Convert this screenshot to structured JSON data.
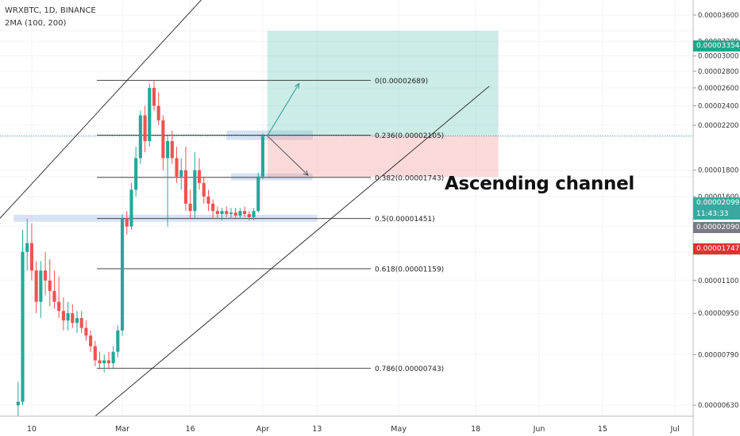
{
  "header": {
    "symbol_line": "WRXBTC, 1D, BINANCE",
    "indicator_line": "2MA (100, 200)"
  },
  "annotation": {
    "text": "Ascending channel"
  },
  "price_tags": [
    {
      "value": "0.00003354",
      "color": "#22a68a"
    },
    {
      "value": "0.00002099",
      "color": "#3aa8a0"
    },
    {
      "value": "11:43:33",
      "color": "#3aa8a0"
    },
    {
      "value": "0.00002090",
      "color": "#787b86"
    },
    {
      "value": "0.00001747",
      "color": "#e0322f"
    }
  ],
  "chart_data": {
    "type": "candlestick",
    "y_scale": "log",
    "ylim": [
      6e-06,
      3.85e-05
    ],
    "xlim": [
      "2020-02-03",
      "2020-07-05"
    ],
    "y_ticks": [
      "0.00003600",
      "0.00003354",
      "0.00003200",
      "0.00003000",
      "0.00002800",
      "0.00002600",
      "0.00002400",
      "0.00002200",
      "0.00002099",
      "0.00002090",
      "0.00001800",
      "0.00001747",
      "0.00001600",
      "0.00001400",
      "0.00001250",
      "0.00001100",
      "0.00000950",
      "0.00000790",
      "0.00000630"
    ],
    "x_ticks": [
      {
        "label": "10",
        "date": "2020-02-10"
      },
      {
        "label": "Mar",
        "date": "2020-03-01"
      },
      {
        "label": "16",
        "date": "2020-03-16"
      },
      {
        "label": "Apr",
        "date": "2020-04-01"
      },
      {
        "label": "13",
        "date": "2020-04-13"
      },
      {
        "label": "May",
        "date": "2020-05-01"
      },
      {
        "label": "18",
        "date": "2020-05-18"
      },
      {
        "label": "Jun",
        "date": "2020-06-01"
      },
      {
        "label": "15",
        "date": "2020-06-15"
      },
      {
        "label": "Jul",
        "date": "2020-07-01"
      }
    ],
    "candles": [
      {
        "date": "2020-02-07",
        "o": 6.3e-06,
        "h": 7e-06,
        "l": 6e-06,
        "c": 6.4e-06
      },
      {
        "date": "2020-02-08",
        "o": 6.4e-06,
        "h": 1.38e-05,
        "l": 6.3e-06,
        "c": 1.25e-05
      },
      {
        "date": "2020-02-09",
        "o": 1.25e-05,
        "h": 1.45e-05,
        "l": 1.15e-05,
        "c": 1.3e-05
      },
      {
        "date": "2020-02-10",
        "o": 1.3e-05,
        "h": 1.42e-05,
        "l": 1.1e-05,
        "c": 1.15e-05
      },
      {
        "date": "2020-02-11",
        "o": 1.15e-05,
        "h": 1.2e-05,
        "l": 9.5e-06,
        "c": 1e-05
      },
      {
        "date": "2020-02-12",
        "o": 1e-05,
        "h": 1.2e-05,
        "l": 9.3e-06,
        "c": 1.15e-05
      },
      {
        "date": "2020-02-13",
        "o": 1.15e-05,
        "h": 1.25e-05,
        "l": 1.03e-05,
        "c": 1.1e-05
      },
      {
        "date": "2020-02-14",
        "o": 1.1e-05,
        "h": 1.21e-05,
        "l": 9.8e-06,
        "c": 1.05e-05
      },
      {
        "date": "2020-02-15",
        "o": 1.05e-05,
        "h": 1.15e-05,
        "l": 9.7e-06,
        "c": 1e-05
      },
      {
        "date": "2020-02-16",
        "o": 1e-05,
        "h": 1.12e-05,
        "l": 9.3e-06,
        "c": 9.6e-06
      },
      {
        "date": "2020-02-17",
        "o": 9.6e-06,
        "h": 1.02e-05,
        "l": 8.8e-06,
        "c": 9.2e-06
      },
      {
        "date": "2020-02-18",
        "o": 9.2e-06,
        "h": 1e-05,
        "l": 8.8e-06,
        "c": 9.5e-06
      },
      {
        "date": "2020-02-19",
        "o": 9.5e-06,
        "h": 9.9e-06,
        "l": 8.9e-06,
        "c": 9.1e-06
      },
      {
        "date": "2020-02-20",
        "o": 9.1e-06,
        "h": 9.6e-06,
        "l": 8.7e-06,
        "c": 9.3e-06
      },
      {
        "date": "2020-02-21",
        "o": 9.3e-06,
        "h": 9.6e-06,
        "l": 8.7e-06,
        "c": 8.9e-06
      },
      {
        "date": "2020-02-22",
        "o": 8.9e-06,
        "h": 9.2e-06,
        "l": 8.4e-06,
        "c": 8.6e-06
      },
      {
        "date": "2020-02-23",
        "o": 8.6e-06,
        "h": 8.8e-06,
        "l": 8e-06,
        "c": 8.2e-06
      },
      {
        "date": "2020-02-24",
        "o": 8.2e-06,
        "h": 8.4e-06,
        "l": 7.5e-06,
        "c": 7.7e-06
      },
      {
        "date": "2020-02-25",
        "o": 7.7e-06,
        "h": 8e-06,
        "l": 7.4e-06,
        "c": 7.6e-06
      },
      {
        "date": "2020-02-26",
        "o": 7.6e-06,
        "h": 7.9e-06,
        "l": 7.3e-06,
        "c": 7.7e-06
      },
      {
        "date": "2020-02-27",
        "o": 7.7e-06,
        "h": 8e-06,
        "l": 7.4e-06,
        "c": 7.6e-06
      },
      {
        "date": "2020-02-28",
        "o": 7.6e-06,
        "h": 8.2e-06,
        "l": 7.4e-06,
        "c": 8e-06
      },
      {
        "date": "2020-02-29",
        "o": 8e-06,
        "h": 9e-06,
        "l": 7.8e-06,
        "c": 8.8e-06
      },
      {
        "date": "2020-03-01",
        "o": 8.8e-06,
        "h": 1.48e-05,
        "l": 8.6e-06,
        "c": 1.45e-05
      },
      {
        "date": "2020-03-02",
        "o": 1.45e-05,
        "h": 1.5e-05,
        "l": 1.35e-05,
        "c": 1.4e-05
      },
      {
        "date": "2020-03-03",
        "o": 1.4e-05,
        "h": 1.7e-05,
        "l": 1.38e-05,
        "c": 1.65e-05
      },
      {
        "date": "2020-03-04",
        "o": 1.65e-05,
        "h": 2e-05,
        "l": 1.6e-05,
        "c": 1.9e-05
      },
      {
        "date": "2020-03-05",
        "o": 1.9e-05,
        "h": 2.35e-05,
        "l": 1.85e-05,
        "c": 2.3e-05
      },
      {
        "date": "2020-03-06",
        "o": 2.3e-05,
        "h": 2.4e-05,
        "l": 1.95e-05,
        "c": 2.05e-05
      },
      {
        "date": "2020-03-07",
        "o": 2.05e-05,
        "h": 2.65e-05,
        "l": 2e-05,
        "c": 2.6e-05
      },
      {
        "date": "2020-03-08",
        "o": 2.6e-05,
        "h": 2.69e-05,
        "l": 2.35e-05,
        "c": 2.4e-05
      },
      {
        "date": "2020-03-09",
        "o": 2.4e-05,
        "h": 2.55e-05,
        "l": 2.2e-05,
        "c": 2.25e-05
      },
      {
        "date": "2020-03-10",
        "o": 2.25e-05,
        "h": 2.3e-05,
        "l": 1.8e-05,
        "c": 1.9e-05
      },
      {
        "date": "2020-03-11",
        "o": 1.9e-05,
        "h": 2.1e-05,
        "l": 1.4e-05,
        "c": 2.05e-05
      },
      {
        "date": "2020-03-12",
        "o": 2.05e-05,
        "h": 2.15e-05,
        "l": 1.85e-05,
        "c": 1.9e-05
      },
      {
        "date": "2020-03-13",
        "o": 1.9e-05,
        "h": 2e-05,
        "l": 1.7e-05,
        "c": 1.75e-05
      },
      {
        "date": "2020-03-14",
        "o": 1.75e-05,
        "h": 1.9e-05,
        "l": 1.65e-05,
        "c": 1.8e-05
      },
      {
        "date": "2020-03-15",
        "o": 1.8e-05,
        "h": 2e-05,
        "l": 1.5e-05,
        "c": 1.55e-05
      },
      {
        "date": "2020-03-16",
        "o": 1.55e-05,
        "h": 1.65e-05,
        "l": 1.45e-05,
        "c": 1.5e-05
      },
      {
        "date": "2020-03-17",
        "o": 1.5e-05,
        "h": 1.95e-05,
        "l": 1.45e-05,
        "c": 1.8e-05
      },
      {
        "date": "2020-03-18",
        "o": 1.8e-05,
        "h": 1.9e-05,
        "l": 1.65e-05,
        "c": 1.7e-05
      },
      {
        "date": "2020-03-19",
        "o": 1.7e-05,
        "h": 1.75e-05,
        "l": 1.55e-05,
        "c": 1.6e-05
      },
      {
        "date": "2020-03-20",
        "o": 1.6e-05,
        "h": 1.65e-05,
        "l": 1.5e-05,
        "c": 1.55e-05
      },
      {
        "date": "2020-03-21",
        "o": 1.55e-05,
        "h": 1.58e-05,
        "l": 1.45e-05,
        "c": 1.5e-05
      },
      {
        "date": "2020-03-22",
        "o": 1.5e-05,
        "h": 1.53e-05,
        "l": 1.45e-05,
        "c": 1.48e-05
      },
      {
        "date": "2020-03-23",
        "o": 1.48e-05,
        "h": 1.52e-05,
        "l": 1.44e-05,
        "c": 1.5e-05
      },
      {
        "date": "2020-03-24",
        "o": 1.5e-05,
        "h": 1.53e-05,
        "l": 1.46e-05,
        "c": 1.48e-05
      },
      {
        "date": "2020-03-25",
        "o": 1.48e-05,
        "h": 1.52e-05,
        "l": 1.45e-05,
        "c": 1.49e-05
      },
      {
        "date": "2020-03-26",
        "o": 1.49e-05,
        "h": 1.52e-05,
        "l": 1.45e-05,
        "c": 1.47e-05
      },
      {
        "date": "2020-03-27",
        "o": 1.47e-05,
        "h": 1.52e-05,
        "l": 1.45e-05,
        "c": 1.5e-05
      },
      {
        "date": "2020-03-28",
        "o": 1.5e-05,
        "h": 1.53e-05,
        "l": 1.46e-05,
        "c": 1.48e-05
      },
      {
        "date": "2020-03-29",
        "o": 1.48e-05,
        "h": 1.5e-05,
        "l": 1.44e-05,
        "c": 1.46e-05
      },
      {
        "date": "2020-03-30",
        "o": 1.46e-05,
        "h": 1.52e-05,
        "l": 1.44e-05,
        "c": 1.5e-05
      },
      {
        "date": "2020-03-31",
        "o": 1.5e-05,
        "h": 1.78e-05,
        "l": 1.49e-05,
        "c": 1.75e-05
      },
      {
        "date": "2020-04-01",
        "o": 1.75e-05,
        "h": 2.12e-05,
        "l": 1.73e-05,
        "c": 2.099e-05
      }
    ],
    "horizontal_levels": [
      {
        "label": "0(0.00002689)",
        "price": 2.689e-05
      },
      {
        "label": "0.236(0.00002105)",
        "price": 2.105e-05
      },
      {
        "label": "0.382(0.00001743)",
        "price": 1.743e-05
      },
      {
        "label": "0.5(0.00001451)",
        "price": 1.451e-05
      },
      {
        "label": "0.618(0.00001159)",
        "price": 1.159e-05
      },
      {
        "label": "0.786(0.00000743)",
        "price": 7.43e-06
      }
    ],
    "channel_lines": [
      {
        "from": {
          "date": "2020-02-01",
          "price": 1.39e-05
        },
        "to": {
          "date": "2020-03-19",
          "price": 3.9e-05
        }
      },
      {
        "from": {
          "date": "2020-02-24",
          "price": 6e-06
        },
        "to": {
          "date": "2020-05-21",
          "price": 2.62e-05
        }
      }
    ],
    "long_position": {
      "start": "2020-04-02",
      "end": "2020-05-23",
      "entry": 2.099e-05,
      "target": 3.354e-05,
      "stop": 1.747e-05
    },
    "projection_arrows": [
      {
        "from": {
          "date": "2020-04-02",
          "price": 2.099e-05
        },
        "to": {
          "date": "2020-04-09",
          "price": 2.65e-05
        }
      },
      {
        "from": {
          "date": "2020-04-02",
          "price": 2.099e-05
        },
        "to": {
          "date": "2020-04-11",
          "price": 1.76e-05
        }
      }
    ],
    "highlight_zones": [
      {
        "date_start": "2020-03-24",
        "date_end": "2020-04-12",
        "price_low": 2.06e-05,
        "price_high": 2.15e-05
      },
      {
        "date_start": "2020-03-25",
        "date_end": "2020-04-12",
        "price_low": 1.72e-05,
        "price_high": 1.775e-05
      },
      {
        "date_start": "2020-02-06",
        "date_end": "2020-04-13",
        "price_low": 1.43e-05,
        "price_high": 1.475e-05
      }
    ]
  }
}
